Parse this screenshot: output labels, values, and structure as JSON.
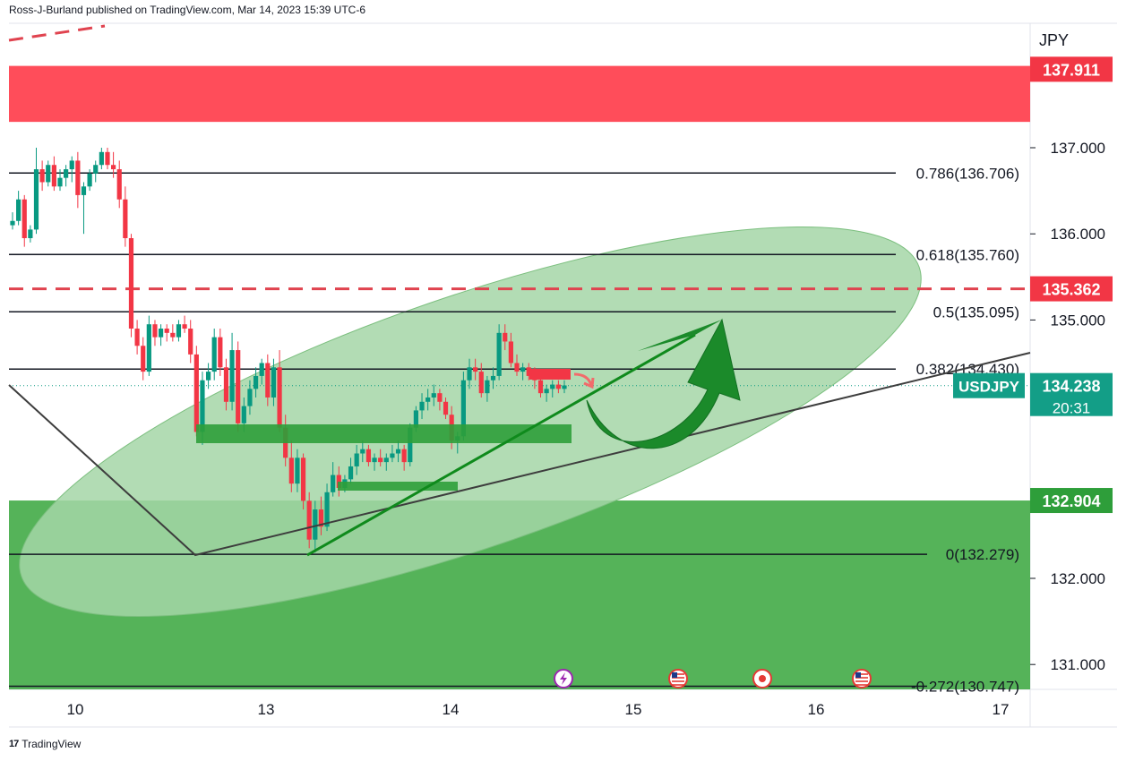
{
  "header": {
    "text": "Ross-J-Burland published on TradingView.com, Mar 14, 2023 15:39 UTC-6"
  },
  "footer": {
    "brand": "TradingView",
    "logo_glyph": "17"
  },
  "colors": {
    "bull": "#089981",
    "bear": "#f23645",
    "resistance_zone": "#ff4d5a",
    "support_zone": "#4caf50",
    "ellipse": "#a5d6a7",
    "arrow": "#1b8a2a",
    "symbol_badge": "#139e87",
    "dashed": "#e0434f"
  },
  "chart_data": {
    "type": "candlestick",
    "symbol": "USDJPY",
    "currency": "JPY",
    "ylim": [
      130.55,
      138.4
    ],
    "y_ticks": [
      "137.000",
      "136.000",
      "135.000",
      "132.000",
      "131.000"
    ],
    "x_ticks": [
      "10",
      "13",
      "14",
      "15",
      "16",
      "17"
    ],
    "last_price": "134.238",
    "countdown": "20:31",
    "price_labels": [
      {
        "value": 137.911,
        "text": "137.911",
        "color": "#f23645"
      },
      {
        "value": 135.362,
        "text": "135.362",
        "color": "#f23645"
      },
      {
        "value": 132.904,
        "text": "132.904",
        "color": "#2e9e3a"
      }
    ],
    "fibonacci": [
      {
        "level": "0.786",
        "value": 136.706,
        "label": "0.786(136.706)"
      },
      {
        "level": "0.618",
        "value": 135.76,
        "label": "0.618(135.760)"
      },
      {
        "level": "0.5",
        "value": 135.095,
        "label": "0.5(135.095)"
      },
      {
        "level": "0.382",
        "value": 134.43,
        "label": "0.382(134.430)"
      },
      {
        "level": "0",
        "value": 132.279,
        "label": "0(132.279)"
      },
      {
        "level": "-0.272",
        "value": 130.747,
        "label": "-0.272(130.747)"
      }
    ],
    "zones": [
      {
        "name": "resistance",
        "from": 137.3,
        "to": 137.95
      },
      {
        "name": "support",
        "from": 130.55,
        "to": 132.904
      }
    ],
    "candles": [
      [
        136.1,
        136.25,
        136.05,
        136.15
      ],
      [
        136.15,
        136.5,
        136.1,
        136.4
      ],
      [
        136.4,
        136.45,
        135.85,
        135.95
      ],
      [
        135.95,
        136.1,
        135.9,
        136.05
      ],
      [
        136.05,
        137.0,
        136.0,
        136.75
      ],
      [
        136.75,
        136.85,
        136.5,
        136.6
      ],
      [
        136.6,
        136.85,
        136.55,
        136.8
      ],
      [
        136.8,
        136.9,
        136.5,
        136.55
      ],
      [
        136.55,
        136.75,
        136.5,
        136.65
      ],
      [
        136.65,
        136.8,
        136.55,
        136.75
      ],
      [
        136.75,
        136.9,
        136.6,
        136.85
      ],
      [
        136.85,
        136.95,
        136.3,
        136.45
      ],
      [
        136.45,
        136.6,
        136.0,
        136.55
      ],
      [
        136.55,
        136.75,
        136.5,
        136.7
      ],
      [
        136.7,
        136.85,
        136.6,
        136.8
      ],
      [
        136.8,
        137.0,
        136.75,
        136.95
      ],
      [
        136.95,
        137.0,
        136.75,
        136.8
      ],
      [
        136.8,
        136.95,
        136.65,
        136.75
      ],
      [
        136.75,
        136.85,
        136.3,
        136.4
      ],
      [
        136.4,
        136.55,
        135.85,
        135.95
      ],
      [
        135.95,
        136.0,
        134.8,
        134.9
      ],
      [
        134.9,
        135.0,
        134.6,
        134.7
      ],
      [
        134.7,
        134.8,
        134.3,
        134.4
      ],
      [
        134.4,
        135.05,
        134.35,
        134.95
      ],
      [
        134.95,
        135.0,
        134.7,
        134.8
      ],
      [
        134.8,
        134.95,
        134.7,
        134.9
      ],
      [
        134.9,
        134.95,
        134.75,
        134.85
      ],
      [
        134.85,
        134.95,
        134.75,
        134.8
      ],
      [
        134.8,
        135.0,
        134.75,
        134.95
      ],
      [
        134.95,
        135.05,
        134.85,
        134.9
      ],
      [
        134.9,
        135.0,
        134.5,
        134.6
      ],
      [
        134.6,
        134.7,
        133.65,
        133.7
      ],
      [
        133.7,
        134.4,
        133.55,
        134.3
      ],
      [
        134.3,
        134.5,
        134.2,
        134.4
      ],
      [
        134.4,
        134.9,
        134.3,
        134.8
      ],
      [
        134.8,
        134.9,
        134.35,
        134.45
      ],
      [
        134.45,
        134.55,
        133.95,
        134.05
      ],
      [
        134.05,
        134.85,
        133.95,
        134.65
      ],
      [
        134.65,
        134.75,
        133.7,
        133.8
      ],
      [
        133.8,
        134.1,
        133.7,
        134.0
      ],
      [
        134.0,
        134.3,
        133.9,
        134.2
      ],
      [
        134.2,
        134.45,
        134.1,
        134.35
      ],
      [
        134.35,
        134.55,
        134.25,
        134.5
      ],
      [
        134.5,
        134.6,
        134.0,
        134.1
      ],
      [
        134.1,
        134.55,
        134.0,
        134.45
      ],
      [
        134.45,
        134.65,
        133.7,
        133.75
      ],
      [
        133.75,
        133.9,
        133.3,
        133.4
      ],
      [
        133.4,
        133.6,
        133.0,
        133.1
      ],
      [
        133.1,
        133.5,
        133.0,
        133.4
      ],
      [
        133.4,
        133.45,
        132.8,
        132.9
      ],
      [
        132.9,
        133.0,
        132.35,
        132.45
      ],
      [
        132.45,
        132.9,
        132.3,
        132.8
      ],
      [
        132.8,
        132.95,
        132.5,
        132.6
      ],
      [
        132.6,
        133.1,
        132.55,
        133.0
      ],
      [
        133.0,
        133.35,
        132.95,
        133.2
      ],
      [
        133.2,
        133.3,
        132.95,
        133.05
      ],
      [
        133.05,
        133.2,
        133.0,
        133.15
      ],
      [
        133.15,
        133.4,
        133.1,
        133.3
      ],
      [
        133.3,
        133.55,
        133.2,
        133.45
      ],
      [
        133.45,
        133.6,
        133.35,
        133.5
      ],
      [
        133.5,
        133.55,
        133.3,
        133.35
      ],
      [
        133.35,
        133.45,
        133.25,
        133.4
      ],
      [
        133.4,
        133.5,
        133.3,
        133.35
      ],
      [
        133.35,
        133.45,
        133.25,
        133.4
      ],
      [
        133.4,
        133.55,
        133.35,
        133.45
      ],
      [
        133.45,
        133.6,
        133.35,
        133.5
      ],
      [
        133.5,
        133.55,
        133.25,
        133.35
      ],
      [
        133.35,
        133.8,
        133.3,
        133.75
      ],
      [
        133.75,
        134.0,
        133.7,
        133.95
      ],
      [
        133.95,
        134.15,
        133.85,
        134.05
      ],
      [
        134.05,
        134.2,
        133.95,
        134.1
      ],
      [
        134.1,
        134.25,
        134.0,
        134.15
      ],
      [
        134.15,
        134.2,
        133.95,
        134.05
      ],
      [
        134.05,
        134.1,
        133.85,
        133.9
      ],
      [
        133.9,
        134.0,
        133.5,
        133.6
      ],
      [
        133.6,
        133.7,
        133.45,
        133.65
      ],
      [
        133.65,
        134.4,
        133.6,
        134.3
      ],
      [
        134.3,
        134.55,
        134.2,
        134.45
      ],
      [
        134.45,
        134.55,
        134.3,
        134.4
      ],
      [
        134.4,
        134.5,
        134.1,
        134.15
      ],
      [
        134.15,
        134.35,
        134.05,
        134.3
      ],
      [
        134.3,
        134.45,
        134.2,
        134.35
      ],
      [
        134.35,
        134.95,
        134.3,
        134.85
      ],
      [
        134.85,
        134.95,
        134.65,
        134.75
      ],
      [
        134.75,
        134.85,
        134.45,
        134.5
      ],
      [
        134.5,
        134.6,
        134.35,
        134.4
      ],
      [
        134.4,
        134.5,
        134.3,
        134.45
      ],
      [
        134.45,
        134.5,
        134.3,
        134.35
      ],
      [
        134.35,
        134.45,
        134.2,
        134.3
      ],
      [
        134.3,
        134.35,
        134.1,
        134.15
      ],
      [
        134.15,
        134.25,
        134.05,
        134.2
      ],
      [
        134.2,
        134.3,
        134.1,
        134.25
      ],
      [
        134.25,
        134.3,
        134.15,
        134.2
      ],
      [
        134.2,
        134.3,
        134.15,
        134.24
      ]
    ],
    "annotations": {
      "ellipse": "ascending zone",
      "trendlines": 3,
      "arrow": "up"
    },
    "event_icons": [
      "lightning-icon",
      "us-flag-icon",
      "target-icon",
      "us-flag-icon"
    ]
  }
}
